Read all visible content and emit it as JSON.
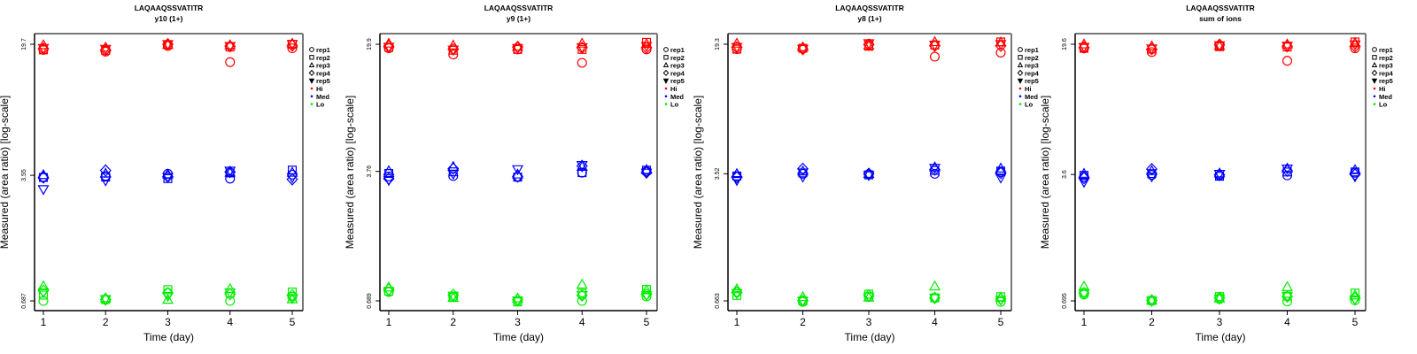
{
  "chart_data": [
    {
      "type": "scatter",
      "title": "LAQAAQSSVATITR",
      "subtitle": "y10 (1+)",
      "xlabel": "Time (day)",
      "ylabel": "Measured (area ratio) [log-scale]",
      "x_ticks": [
        "1",
        "2",
        "3",
        "4",
        "5"
      ],
      "y_ticks": [
        {
          "value": 19.7,
          "label": "19.7"
        },
        {
          "value": 3.55,
          "label": "3.55"
        },
        {
          "value": 0.687,
          "label": "0.687"
        }
      ],
      "ylim": [
        0.66,
        22.0
      ],
      "yscale": "log",
      "series": [
        {
          "name": "Hi",
          "color": "#ff0000",
          "points": {
            "rep1": [
              18.3,
              17.9,
              19.3,
              15.6,
              18.7
            ],
            "rep2": [
              18.3,
              18.2,
              19.6,
              19.0,
              19.7
            ],
            "rep3": [
              19.4,
              18.8,
              19.5,
              19.4,
              19.8
            ],
            "rep4": [
              18.6,
              18.3,
              19.7,
              19.2,
              19.4
            ],
            "rep5": [
              18.8,
              18.6,
              19.8,
              19.3,
              19.8
            ]
          }
        },
        {
          "name": "Med",
          "color": "#0000ff",
          "points": {
            "rep1": [
              3.47,
              3.52,
              3.62,
              3.4,
              3.58
            ],
            "rep2": [
              3.45,
              3.47,
              3.4,
              3.66,
              3.8
            ],
            "rep3": [
              3.55,
              3.62,
              3.58,
              3.66,
              3.66
            ],
            "rep4": [
              3.45,
              3.78,
              3.49,
              3.71,
              3.37
            ],
            "rep5": [
              2.97,
              3.33,
              3.49,
              3.78,
              3.47
            ]
          }
        },
        {
          "name": "Lo",
          "color": "#00ee00",
          "points": {
            "rep1": [
              0.687,
              0.697,
              0.763,
              0.687,
              0.725
            ],
            "rep2": [
              0.741,
              0.7,
              0.795,
              0.763,
              0.772
            ],
            "rep3": [
              0.83,
              0.71,
              0.695,
              0.8,
              0.7
            ],
            "rep4": [
              0.785,
              0.7,
              0.76,
              0.75,
              0.74
            ],
            "rep5": [
              0.77,
              0.705,
              0.735,
              0.77,
              0.715
            ]
          }
        }
      ]
    },
    {
      "type": "scatter",
      "title": "LAQAAQSSVATITR",
      "subtitle": "y9 (1+)",
      "xlabel": "Time (day)",
      "ylabel": "Measured (area ratio) [log-scale]",
      "x_ticks": [
        "1",
        "2",
        "3",
        "4",
        "5"
      ],
      "y_ticks": [
        {
          "value": 19.9,
          "label": "19.9"
        },
        {
          "value": 3.76,
          "label": "3.76"
        },
        {
          "value": 0.689,
          "label": "0.689"
        }
      ],
      "ylim": [
        0.66,
        22.2
      ],
      "yscale": "log",
      "series": [
        {
          "name": "Hi",
          "color": "#ff0000",
          "points": {
            "rep1": [
              18.9,
              17.4,
              18.6,
              15.6,
              18.6
            ],
            "rep2": [
              19.1,
              18.4,
              18.6,
              18.6,
              20.4
            ],
            "rep3": [
              20.0,
              19.5,
              19.2,
              20.0,
              19.9
            ],
            "rep4": [
              19.4,
              18.6,
              19.2,
              19.0,
              19.0
            ],
            "rep5": [
              19.3,
              18.6,
              19.0,
              19.2,
              19.5
            ]
          }
        },
        {
          "name": "Med",
          "color": "#0000ff",
          "points": {
            "rep1": [
              3.52,
              3.54,
              3.49,
              3.7,
              3.76
            ],
            "rep2": [
              3.66,
              3.74,
              3.49,
              3.7,
              3.82
            ],
            "rep3": [
              3.76,
              3.98,
              3.6,
              3.98,
              3.82
            ],
            "rep4": [
              3.42,
              3.9,
              3.52,
              4.04,
              3.71
            ],
            "rep5": [
              3.37,
              3.66,
              3.88,
              4.1,
              3.71
            ]
          }
        },
        {
          "name": "Lo",
          "color": "#00ee00",
          "points": {
            "rep1": [
              0.774,
              0.73,
              0.689,
              0.689,
              0.73
            ],
            "rep2": [
              0.782,
              0.72,
              0.68,
              0.76,
              0.8
            ],
            "rep3": [
              0.82,
              0.715,
              0.71,
              0.85,
              0.79
            ],
            "rep4": [
              0.8,
              0.745,
              0.7,
              0.74,
              0.75
            ],
            "rep5": [
              0.785,
              0.74,
              0.695,
              0.745,
              0.745
            ]
          }
        }
      ]
    },
    {
      "type": "scatter",
      "title": "LAQAAQSSVATITR",
      "subtitle": "y8 (1+)",
      "xlabel": "Time (day)",
      "ylabel": "Measured (area ratio) [log-scale]",
      "x_ticks": [
        "1",
        "2",
        "3",
        "4",
        "5"
      ],
      "y_ticks": [
        {
          "value": 19.3,
          "label": "19.3"
        },
        {
          "value": 3.52,
          "label": "3.52"
        },
        {
          "value": 0.663,
          "label": "0.663"
        }
      ],
      "ylim": [
        0.635,
        21.5
      ],
      "yscale": "log",
      "series": [
        {
          "name": "Hi",
          "color": "#ff0000",
          "points": {
            "rep1": [
              18.1,
              18.3,
              19.4,
              16.4,
              17.3
            ],
            "rep2": [
              18.1,
              18.3,
              18.8,
              19.1,
              19.9
            ],
            "rep3": [
              19.4,
              18.5,
              18.9,
              19.8,
              19.7
            ],
            "rep4": [
              18.5,
              18.1,
              19.2,
              18.9,
              18.9
            ],
            "rep5": [
              18.7,
              18.2,
              19.6,
              19.2,
              19.4
            ]
          }
        },
        {
          "name": "Med",
          "color": "#0000ff",
          "points": {
            "rep1": [
              3.4,
              3.52,
              3.5,
              3.52,
              3.6
            ],
            "rep2": [
              3.42,
              3.56,
              3.47,
              3.68,
              3.65
            ],
            "rep3": [
              3.5,
              3.62,
              3.5,
              3.82,
              3.76
            ],
            "rep4": [
              3.36,
              3.76,
              3.52,
              3.72,
              3.56
            ],
            "rep5": [
              3.25,
              3.4,
              3.47,
              3.82,
              3.36
            ]
          }
        },
        {
          "name": "Lo",
          "color": "#00ee00",
          "points": {
            "rep1": [
              0.745,
              0.655,
              0.7,
              0.69,
              0.655
            ],
            "rep2": [
              0.712,
              0.663,
              0.725,
              0.69,
              0.7
            ],
            "rep3": [
              0.77,
              0.695,
              0.69,
              0.8,
              0.69
            ],
            "rep4": [
              0.74,
              0.665,
              0.712,
              0.69,
              0.68
            ],
            "rep5": [
              0.735,
              0.665,
              0.705,
              0.69,
              0.675
            ]
          }
        }
      ]
    },
    {
      "type": "scatter",
      "title": "LAQAAQSSVATITR",
      "subtitle": "sum of ions",
      "xlabel": "Time (day)",
      "ylabel": "Measured (area ratio) [log-scale]",
      "x_ticks": [
        "1",
        "2",
        "3",
        "4",
        "5"
      ],
      "y_ticks": [
        {
          "value": 19.6,
          "label": "19.6"
        },
        {
          "value": 3.6,
          "label": "3.6"
        },
        {
          "value": 0.695,
          "label": "0.695"
        }
      ],
      "ylim": [
        0.665,
        21.9
      ],
      "yscale": "log",
      "series": [
        {
          "name": "Hi",
          "color": "#ff0000",
          "points": {
            "rep1": [
              18.6,
              17.7,
              19.3,
              15.8,
              18.6
            ],
            "rep2": [
              18.6,
              18.4,
              19.0,
              18.9,
              20.2
            ],
            "rep3": [
              19.5,
              19.0,
              19.1,
              19.5,
              19.8
            ],
            "rep4": [
              18.8,
              18.4,
              19.5,
              19.1,
              19.1
            ],
            "rep5": [
              19.0,
              18.6,
              19.4,
              19.3,
              19.6
            ]
          }
        },
        {
          "name": "Med",
          "color": "#0000ff",
          "points": {
            "rep1": [
              3.49,
              3.58,
              3.56,
              3.56,
              3.68
            ],
            "rep2": [
              3.56,
              3.64,
              3.52,
              3.72,
              3.72
            ],
            "rep3": [
              3.62,
              3.75,
              3.64,
              3.88,
              3.8
            ],
            "rep4": [
              3.44,
              3.86,
              3.58,
              3.78,
              3.6
            ],
            "rep5": [
              3.28,
              3.52,
              3.64,
              3.9,
              3.52
            ]
          }
        },
        {
          "name": "Lo",
          "color": "#00ee00",
          "points": {
            "rep1": [
              0.755,
              0.695,
              0.712,
              0.69,
              0.7
            ],
            "rep2": [
              0.775,
              0.698,
              0.735,
              0.74,
              0.77
            ],
            "rep3": [
              0.835,
              0.7,
              0.715,
              0.83,
              0.745
            ],
            "rep4": [
              0.77,
              0.7,
              0.725,
              0.735,
              0.72
            ],
            "rep5": [
              0.765,
              0.698,
              0.72,
              0.74,
              0.71
            ]
          }
        }
      ]
    }
  ],
  "legend": {
    "placement": "right",
    "shapes": [
      {
        "label": "rep1",
        "symbol": "circle"
      },
      {
        "label": "rep2",
        "symbol": "square"
      },
      {
        "label": "rep3",
        "symbol": "triangle-up"
      },
      {
        "label": "rep4",
        "symbol": "diamond"
      },
      {
        "label": "rep5",
        "symbol": "triangle-down"
      }
    ],
    "colors": [
      {
        "label": "Hi",
        "color": "#ff0000"
      },
      {
        "label": "Med",
        "color": "#0000ff"
      },
      {
        "label": "Lo",
        "color": "#00ee00"
      }
    ]
  }
}
